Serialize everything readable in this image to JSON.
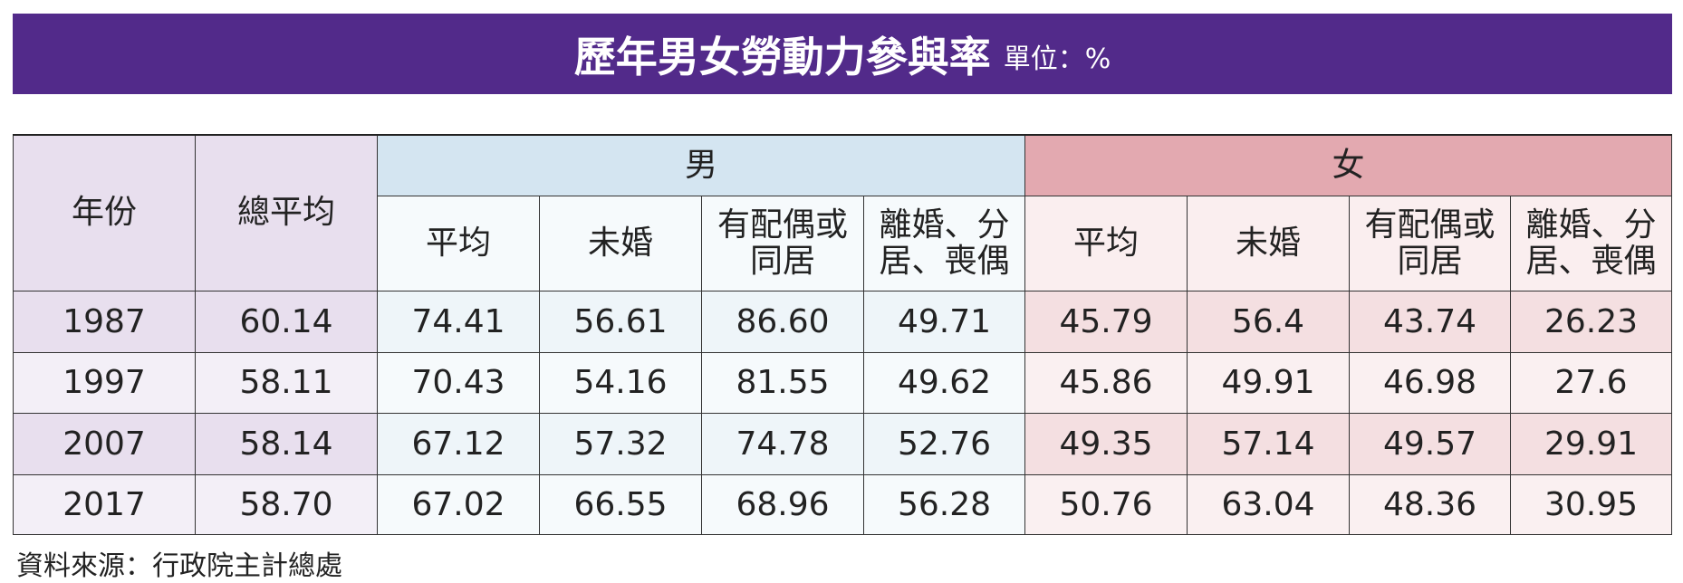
{
  "header": {
    "title": "歷年男女勞動力參與率",
    "unit": "單位：%"
  },
  "table": {
    "year_header": "年份",
    "total_header": "總平均",
    "groups": [
      "男",
      "女"
    ],
    "subheaders": [
      "平均",
      "未婚",
      "有配偶或同居",
      "離婚、分居、喪偶",
      "平均",
      "未婚",
      "有配偶或同居",
      "離婚、分居、喪偶"
    ],
    "rows": [
      [
        "1987",
        "60.14",
        "74.41",
        "56.61",
        "86.60",
        "49.71",
        "45.79",
        "56.4",
        "43.74",
        "26.23"
      ],
      [
        "1997",
        "58.11",
        "70.43",
        "54.16",
        "81.55",
        "49.62",
        "45.86",
        "49.91",
        "46.98",
        "27.6"
      ],
      [
        "2007",
        "58.14",
        "67.12",
        "57.32",
        "74.78",
        "52.76",
        "49.35",
        "57.14",
        "49.57",
        "29.91"
      ],
      [
        "2017",
        "58.70",
        "67.02",
        "66.55",
        "68.96",
        "56.28",
        "50.76",
        "63.04",
        "48.36",
        "30.95"
      ]
    ]
  },
  "source": "資料來源：行政院主計總處"
}
